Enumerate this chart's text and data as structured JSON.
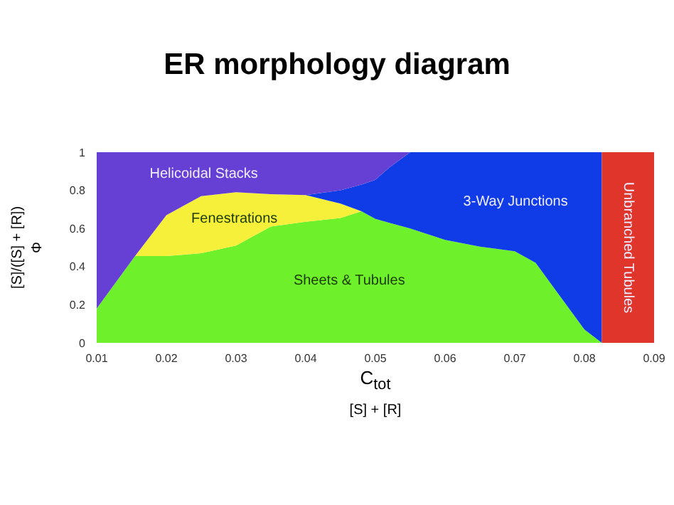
{
  "chart_data": {
    "type": "area",
    "stacked": true,
    "title": "ER morphology diagram",
    "xlabel": "C$_{tot}$\n[S] + [R]",
    "ylabel": "[S]/([S] + [R])\nΦ",
    "x": [
      0.01,
      0.0155,
      0.02,
      0.025,
      0.03,
      0.035,
      0.04,
      0.045,
      0.048,
      0.05,
      0.052,
      0.055,
      0.06,
      0.065,
      0.07,
      0.073,
      0.076,
      0.08,
      0.0825,
      0.0825,
      0.09
    ],
    "series": [
      {
        "name": "Sheets & Tubules",
        "color": "#6ef02a",
        "values": [
          0.18,
          0.455,
          0.455,
          0.47,
          0.51,
          0.61,
          0.635,
          0.655,
          0.69,
          0.65,
          0.63,
          0.6,
          0.54,
          0.505,
          0.48,
          0.42,
          0.27,
          0.07,
          0,
          null,
          null
        ]
      },
      {
        "name": "Fenestrations",
        "color": "#f7f03a",
        "values": [
          null,
          0,
          0.215,
          0.3,
          0.28,
          0.17,
          0.14,
          0.075,
          0,
          null,
          null,
          null,
          null,
          null,
          null,
          null,
          null,
          null,
          null,
          null,
          null
        ]
      },
      {
        "name": "3-Way Junctions",
        "color": "#0f3ce6",
        "values": [
          null,
          null,
          null,
          null,
          null,
          null,
          0,
          0.07,
          0.14,
          0.205,
          0.29,
          0.4,
          0.46,
          0.495,
          0.52,
          0.58,
          0.73,
          0.93,
          1,
          null,
          null
        ]
      },
      {
        "name": "Helicoidal Stacks",
        "color": "#6640d4",
        "values": [
          0.82,
          0.545,
          0.33,
          0.23,
          0.21,
          0.22,
          0.225,
          0.2,
          0.17,
          0.145,
          0.08,
          0,
          null,
          null,
          null,
          null,
          null,
          null,
          null,
          null,
          null
        ]
      },
      {
        "name": "Unbranched Tubules",
        "color": "#e0352a",
        "values": [
          null,
          null,
          null,
          null,
          null,
          null,
          null,
          null,
          null,
          null,
          null,
          null,
          null,
          null,
          null,
          null,
          null,
          null,
          null,
          1,
          1
        ]
      }
    ],
    "xlim": [
      0.01,
      0.09
    ],
    "xticks": [
      0.01,
      0.02,
      0.03,
      0.04,
      0.05,
      0.06,
      0.07,
      0.08,
      0.09
    ],
    "ylim": [
      0,
      1
    ],
    "yticks": [
      0,
      0.2,
      0.4,
      0.6,
      0.8,
      1
    ],
    "grid": false,
    "legend": false
  }
}
